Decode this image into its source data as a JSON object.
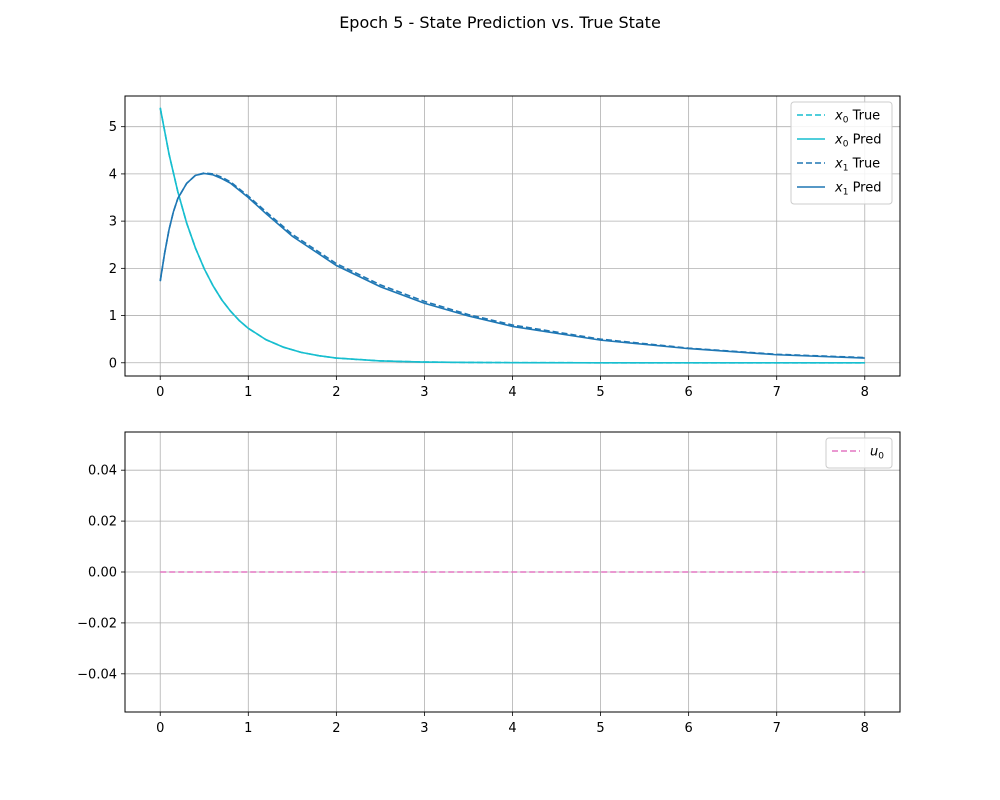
{
  "figure": {
    "title": "Epoch 5 - State Prediction vs. True State"
  },
  "chart_data": [
    {
      "type": "line",
      "xlim": [
        -0.4,
        8.4
      ],
      "ylim": [
        -0.28,
        5.65
      ],
      "xticks": [
        0,
        1,
        2,
        3,
        4,
        5,
        6,
        7,
        8
      ],
      "yticks": [
        0,
        1,
        2,
        3,
        4,
        5
      ],
      "grid": true,
      "legend_position": "top-right",
      "series": [
        {
          "name_base": "x",
          "name_sub": "0",
          "name_suffix": " True",
          "color": "#17becf",
          "style": "dashed",
          "x": [
            0,
            0.1,
            0.2,
            0.3,
            0.4,
            0.5,
            0.6,
            0.7,
            0.8,
            0.9,
            1.0,
            1.2,
            1.4,
            1.6,
            1.8,
            2.0,
            2.5,
            3.0,
            3.5,
            4.0,
            5.0,
            6.0,
            7.0,
            8.0
          ],
          "y": [
            5.4,
            4.42,
            3.62,
            2.96,
            2.43,
            1.99,
            1.63,
            1.33,
            1.09,
            0.89,
            0.73,
            0.49,
            0.33,
            0.22,
            0.15,
            0.099,
            0.04,
            0.016,
            0.007,
            0.003,
            0.0,
            0.0,
            0.0,
            0.0
          ]
        },
        {
          "name_base": "x",
          "name_sub": "0",
          "name_suffix": " Pred",
          "color": "#17becf",
          "style": "solid",
          "x": [
            0,
            0.1,
            0.2,
            0.3,
            0.4,
            0.5,
            0.6,
            0.7,
            0.8,
            0.9,
            1.0,
            1.2,
            1.4,
            1.6,
            1.8,
            2.0,
            2.5,
            3.0,
            3.5,
            4.0,
            5.0,
            6.0,
            7.0,
            8.0
          ],
          "y": [
            5.4,
            4.42,
            3.62,
            2.96,
            2.43,
            1.99,
            1.63,
            1.33,
            1.09,
            0.89,
            0.73,
            0.49,
            0.33,
            0.22,
            0.15,
            0.099,
            0.04,
            0.016,
            0.007,
            0.003,
            0.0,
            0.0,
            0.0,
            0.0
          ]
        },
        {
          "name_base": "x",
          "name_sub": "1",
          "name_suffix": " True",
          "color": "#1f77b4",
          "style": "dashed",
          "x": [
            0,
            0.05,
            0.1,
            0.15,
            0.2,
            0.3,
            0.4,
            0.5,
            0.6,
            0.7,
            0.8,
            1.0,
            1.2,
            1.5,
            2.0,
            2.5,
            3.0,
            3.5,
            4.0,
            5.0,
            6.0,
            7.0,
            8.0
          ],
          "y": [
            1.73,
            2.32,
            2.82,
            3.2,
            3.48,
            3.8,
            3.97,
            4.02,
            4.0,
            3.93,
            3.83,
            3.53,
            3.2,
            2.72,
            2.1,
            1.65,
            1.3,
            1.02,
            0.8,
            0.5,
            0.31,
            0.18,
            0.11
          ]
        },
        {
          "name_base": "x",
          "name_sub": "1",
          "name_suffix": " Pred",
          "color": "#1f77b4",
          "style": "solid",
          "x": [
            0,
            0.05,
            0.1,
            0.15,
            0.2,
            0.3,
            0.4,
            0.5,
            0.6,
            0.7,
            0.8,
            1.0,
            1.2,
            1.5,
            2.0,
            2.5,
            3.0,
            3.5,
            4.0,
            5.0,
            6.0,
            7.0,
            8.0
          ],
          "y": [
            1.73,
            2.32,
            2.82,
            3.2,
            3.48,
            3.8,
            3.97,
            4.01,
            3.98,
            3.9,
            3.8,
            3.5,
            3.16,
            2.68,
            2.06,
            1.61,
            1.26,
            0.99,
            0.77,
            0.48,
            0.3,
            0.17,
            0.1
          ]
        }
      ]
    },
    {
      "type": "line",
      "xlim": [
        -0.4,
        8.4
      ],
      "ylim": [
        -0.055,
        0.055
      ],
      "xticks": [
        0,
        1,
        2,
        3,
        4,
        5,
        6,
        7,
        8
      ],
      "yticks": [
        -0.04,
        -0.02,
        0.0,
        0.02,
        0.04
      ],
      "ytick_labels": [
        "−0.04",
        "−0.02",
        "0.00",
        "0.02",
        "0.04"
      ],
      "grid": true,
      "legend_position": "top-right",
      "series": [
        {
          "name_base": "u",
          "name_sub": "0",
          "name_suffix": "",
          "color": "#e377c2",
          "style": "dashed",
          "x": [
            0,
            8
          ],
          "y": [
            0,
            0
          ]
        }
      ]
    }
  ]
}
